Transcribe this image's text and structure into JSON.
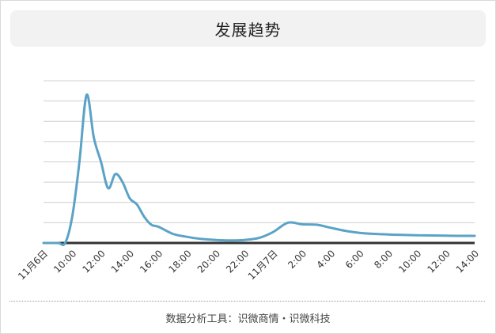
{
  "header": {
    "title": "发展趋势"
  },
  "footer": {
    "text": "数据分析工具：识微商情・识微科技"
  },
  "colors": {
    "line": "#5ba3c6",
    "grid": "#d0d0d0",
    "axis": "#333333"
  },
  "chart_data": {
    "type": "line",
    "title": "发展趋势",
    "xlabel": "",
    "ylabel": "",
    "grid": true,
    "legend": "none",
    "ylim": [
      0,
      8
    ],
    "x_ticks": [
      "11月6日",
      "10:00",
      "12:00",
      "14:00",
      "16:00",
      "18:00",
      "20:00",
      "22:00",
      "11月7日",
      "2:00",
      "4:00",
      "6:00",
      "8:00",
      "10:00",
      "12:00",
      "14:00"
    ],
    "series": [
      {
        "name": "",
        "x_hours": [
          0,
          1,
          1.5,
          2,
          2.5,
          3,
          3.5,
          4,
          4.5,
          5,
          5.5,
          6,
          6.5,
          7,
          7.5,
          8,
          9,
          10,
          11,
          12,
          13,
          14,
          15,
          16,
          17,
          18,
          19,
          20,
          21,
          22,
          23,
          24,
          25,
          26,
          27,
          28,
          29,
          30
        ],
        "values": [
          0,
          0,
          0,
          1.3,
          4.0,
          7.3,
          5.2,
          4.0,
          2.7,
          3.4,
          3.0,
          2.2,
          1.9,
          1.3,
          0.9,
          0.8,
          0.45,
          0.3,
          0.2,
          0.15,
          0.13,
          0.15,
          0.25,
          0.55,
          1.0,
          0.92,
          0.9,
          0.75,
          0.6,
          0.5,
          0.45,
          0.42,
          0.4,
          0.38,
          0.37,
          0.36,
          0.35,
          0.35
        ]
      }
    ]
  }
}
